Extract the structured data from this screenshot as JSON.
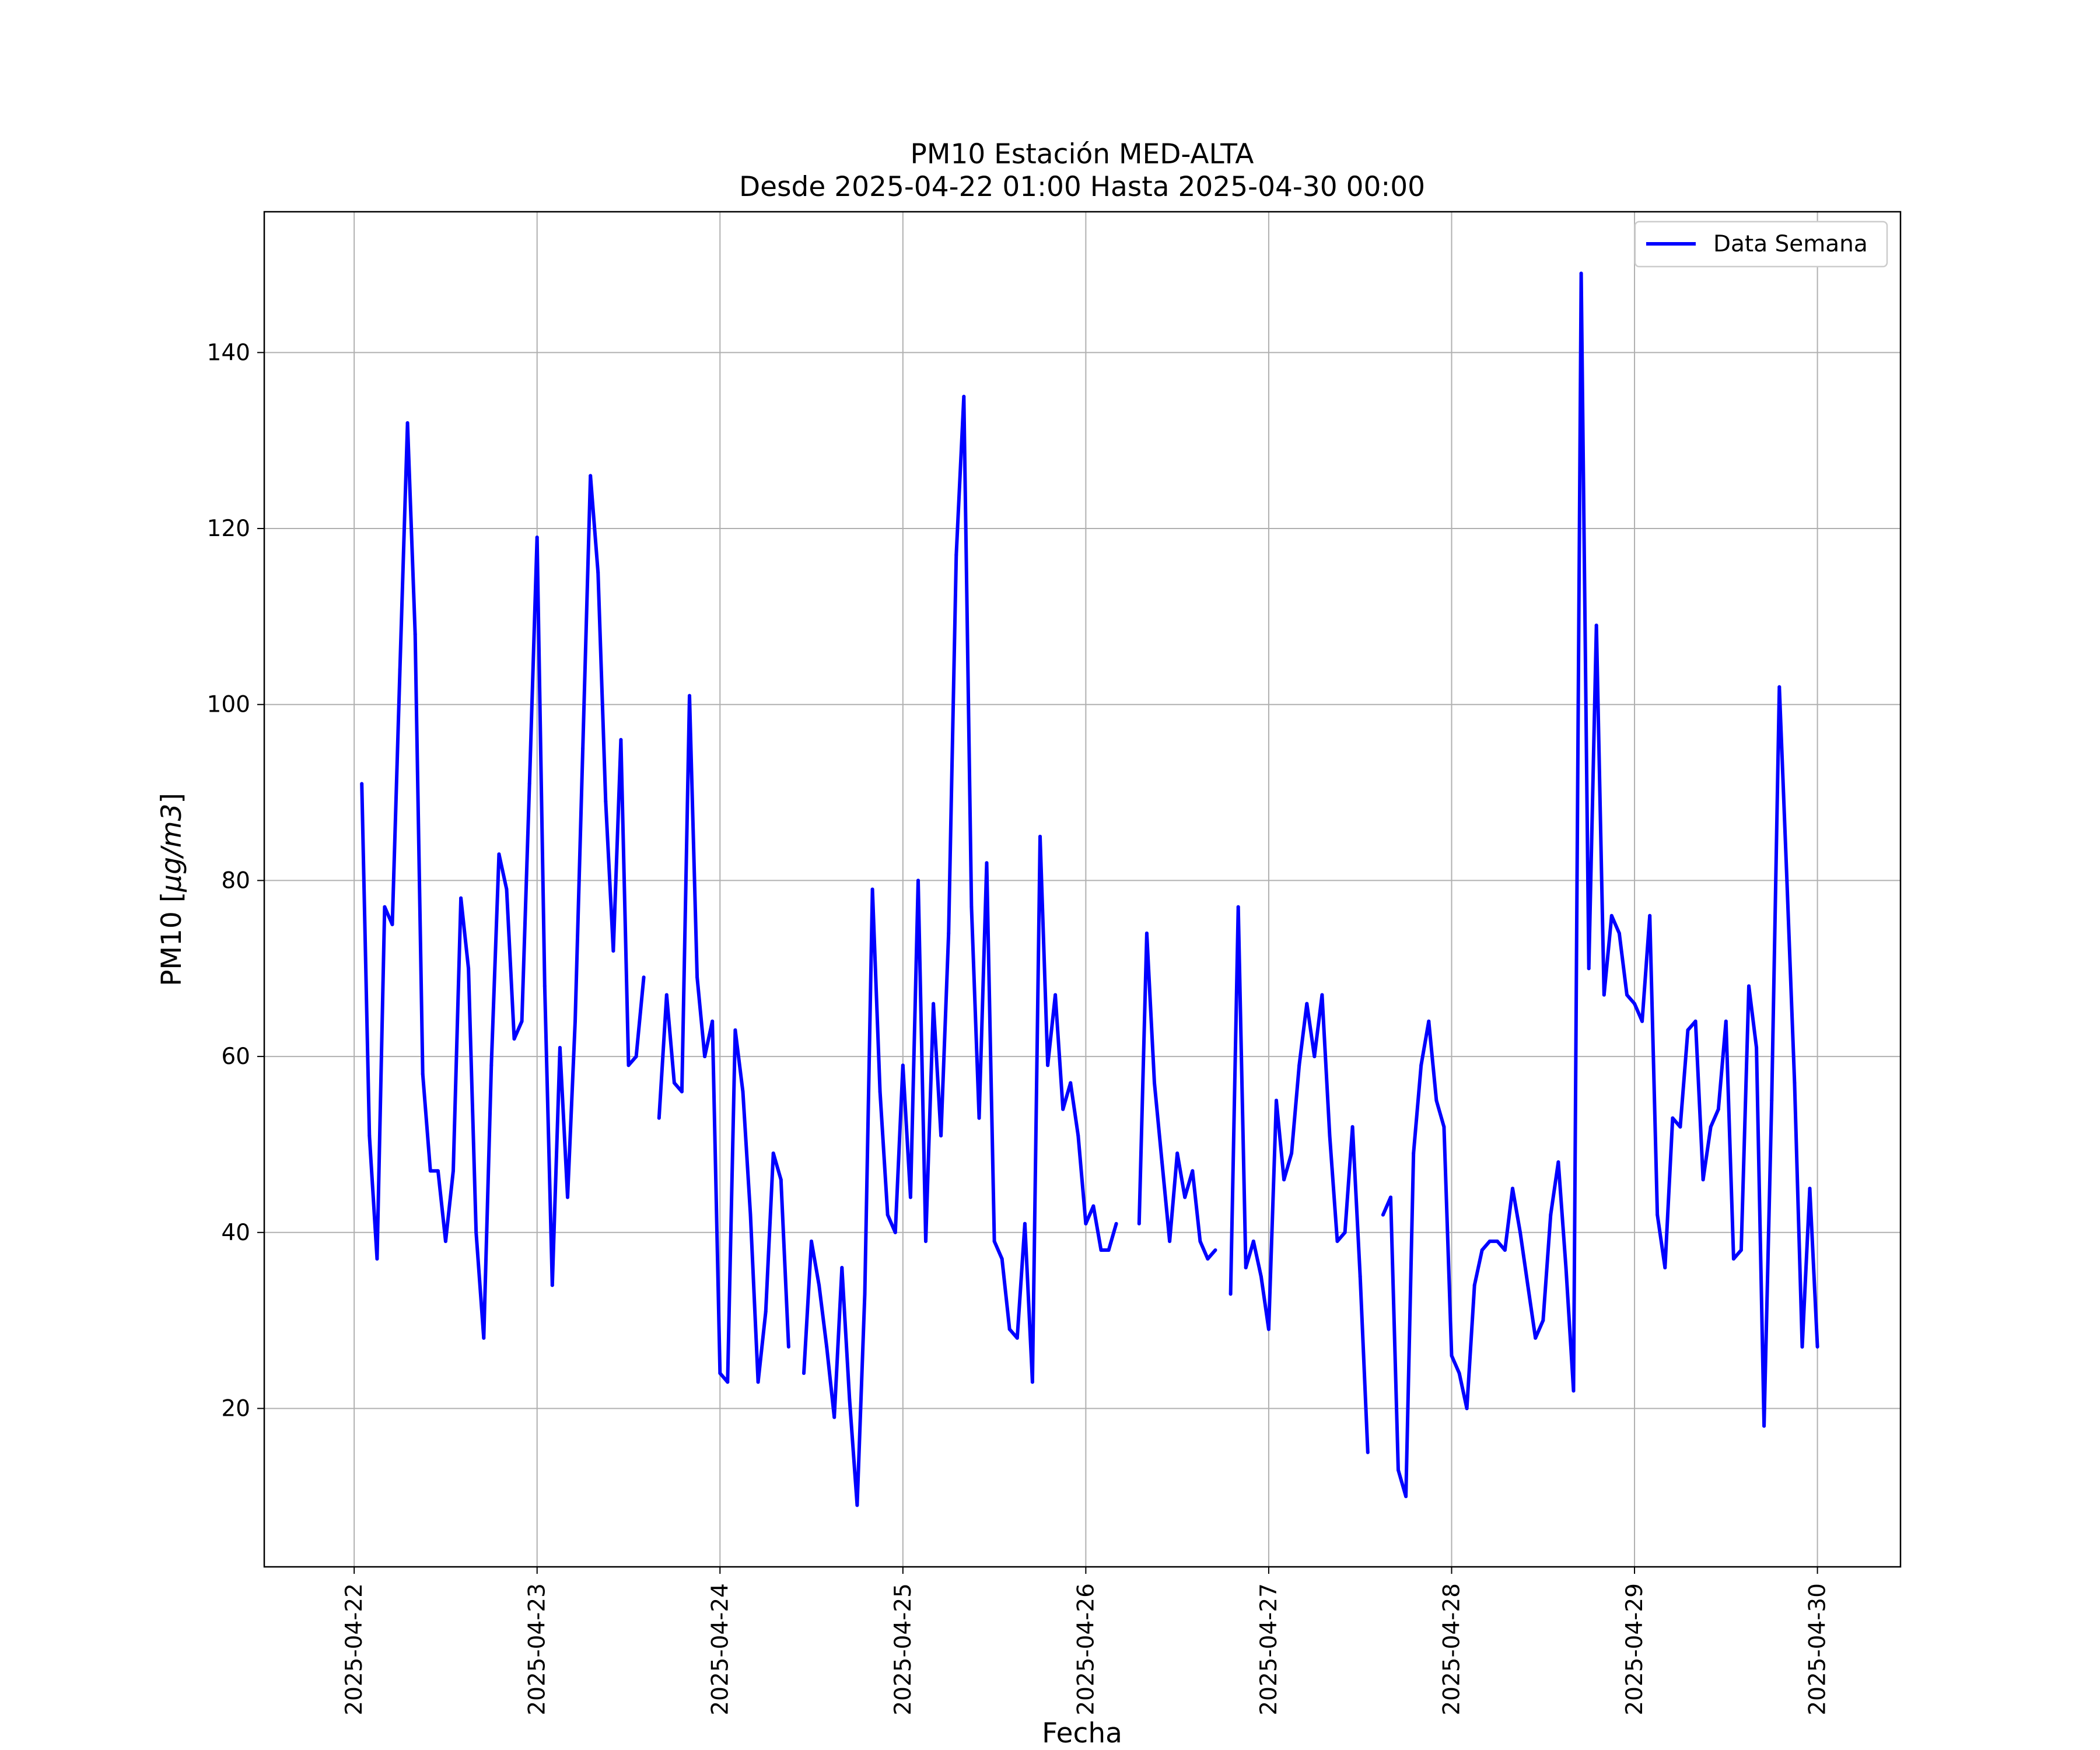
{
  "chart_data": {
    "type": "line",
    "title": "PM10 Estación MED-ALTA",
    "subtitle": "Desde 2025-04-22 01:00 Hasta 2025-04-30 00:00",
    "xlabel": "Fecha",
    "ylabel": "PM10 [μg/m3]",
    "ylabel_parts": {
      "prefix": "PM10 [",
      "unit": "μg/m3",
      "suffix": "]"
    },
    "x_ticks": [
      "2025-04-22",
      "2025-04-23",
      "2025-04-24",
      "2025-04-25",
      "2025-04-26",
      "2025-04-27",
      "2025-04-28",
      "2025-04-29",
      "2025-04-30"
    ],
    "y_ticks": [
      20,
      40,
      60,
      80,
      100,
      120,
      140
    ],
    "xlim": [
      "2025-04-21 12:12",
      "2025-04-30 10:54"
    ],
    "ylim": [
      2,
      156
    ],
    "grid": true,
    "legend_position": "top-right",
    "series": [
      {
        "name": "Data Semana",
        "color": "#0000ff",
        "segments": [
          [
            [
              "2025-04-22 01:00",
              91
            ],
            [
              "2025-04-22 02:00",
              51
            ],
            [
              "2025-04-22 03:00",
              37
            ],
            [
              "2025-04-22 04:00",
              77
            ],
            [
              "2025-04-22 05:00",
              75
            ],
            [
              "2025-04-22 06:00",
              104
            ],
            [
              "2025-04-22 07:00",
              132
            ],
            [
              "2025-04-22 08:00",
              108
            ],
            [
              "2025-04-22 09:00",
              58
            ],
            [
              "2025-04-22 10:00",
              47
            ],
            [
              "2025-04-22 11:00",
              47
            ],
            [
              "2025-04-22 12:00",
              39
            ],
            [
              "2025-04-22 13:00",
              47
            ],
            [
              "2025-04-22 14:00",
              78
            ],
            [
              "2025-04-22 15:00",
              70
            ],
            [
              "2025-04-22 16:00",
              40
            ],
            [
              "2025-04-22 17:00",
              28
            ],
            [
              "2025-04-22 18:00",
              59
            ],
            [
              "2025-04-22 19:00",
              83
            ],
            [
              "2025-04-22 20:00",
              79
            ],
            [
              "2025-04-22 21:00",
              62
            ],
            [
              "2025-04-22 22:00",
              64
            ],
            [
              "2025-04-22 23:00",
              91
            ],
            [
              "2025-04-23 00:00",
              119
            ],
            [
              "2025-04-23 01:00",
              68
            ],
            [
              "2025-04-23 02:00",
              34
            ],
            [
              "2025-04-23 03:00",
              61
            ],
            [
              "2025-04-23 04:00",
              44
            ],
            [
              "2025-04-23 05:00",
              64
            ],
            [
              "2025-04-23 06:00",
              95
            ],
            [
              "2025-04-23 07:00",
              126
            ],
            [
              "2025-04-23 08:00",
              115
            ],
            [
              "2025-04-23 09:00",
              89
            ],
            [
              "2025-04-23 10:00",
              72
            ],
            [
              "2025-04-23 11:00",
              96
            ],
            [
              "2025-04-23 12:00",
              59
            ],
            [
              "2025-04-23 13:00",
              60
            ],
            [
              "2025-04-23 14:00",
              69
            ]
          ],
          [
            [
              "2025-04-23 16:00",
              53
            ],
            [
              "2025-04-23 17:00",
              67
            ],
            [
              "2025-04-23 18:00",
              57
            ],
            [
              "2025-04-23 19:00",
              56
            ],
            [
              "2025-04-23 20:00",
              101
            ],
            [
              "2025-04-23 21:00",
              69
            ],
            [
              "2025-04-23 22:00",
              60
            ],
            [
              "2025-04-23 23:00",
              64
            ],
            [
              "2025-04-24 00:00",
              24
            ],
            [
              "2025-04-24 01:00",
              23
            ],
            [
              "2025-04-24 02:00",
              63
            ],
            [
              "2025-04-24 03:00",
              56
            ],
            [
              "2025-04-24 04:00",
              42
            ],
            [
              "2025-04-24 05:00",
              23
            ],
            [
              "2025-04-24 06:00",
              31
            ],
            [
              "2025-04-24 07:00",
              49
            ],
            [
              "2025-04-24 08:00",
              46
            ],
            [
              "2025-04-24 09:00",
              27
            ]
          ],
          [
            [
              "2025-04-24 11:00",
              24
            ],
            [
              "2025-04-24 12:00",
              39
            ],
            [
              "2025-04-24 13:00",
              34
            ],
            [
              "2025-04-24 14:00",
              27
            ],
            [
              "2025-04-24 15:00",
              19
            ],
            [
              "2025-04-24 16:00",
              36
            ],
            [
              "2025-04-24 17:00",
              21
            ],
            [
              "2025-04-24 18:00",
              9
            ],
            [
              "2025-04-24 19:00",
              33
            ],
            [
              "2025-04-24 20:00",
              79
            ],
            [
              "2025-04-24 21:00",
              56
            ],
            [
              "2025-04-24 22:00",
              42
            ],
            [
              "2025-04-24 23:00",
              40
            ],
            [
              "2025-04-25 00:00",
              59
            ],
            [
              "2025-04-25 01:00",
              44
            ],
            [
              "2025-04-25 02:00",
              80
            ],
            [
              "2025-04-25 03:00",
              39
            ],
            [
              "2025-04-25 04:00",
              66
            ],
            [
              "2025-04-25 05:00",
              51
            ],
            [
              "2025-04-25 06:00",
              74
            ],
            [
              "2025-04-25 07:00",
              117
            ],
            [
              "2025-04-25 08:00",
              135
            ],
            [
              "2025-04-25 09:00",
              77
            ],
            [
              "2025-04-25 10:00",
              53
            ],
            [
              "2025-04-25 11:00",
              82
            ],
            [
              "2025-04-25 12:00",
              39
            ],
            [
              "2025-04-25 13:00",
              37
            ],
            [
              "2025-04-25 14:00",
              29
            ],
            [
              "2025-04-25 15:00",
              28
            ],
            [
              "2025-04-25 16:00",
              41
            ],
            [
              "2025-04-25 17:00",
              23
            ],
            [
              "2025-04-25 18:00",
              85
            ],
            [
              "2025-04-25 19:00",
              59
            ],
            [
              "2025-04-25 20:00",
              67
            ],
            [
              "2025-04-25 21:00",
              54
            ],
            [
              "2025-04-25 22:00",
              57
            ],
            [
              "2025-04-25 23:00",
              51
            ],
            [
              "2025-04-26 00:00",
              41
            ],
            [
              "2025-04-26 01:00",
              43
            ],
            [
              "2025-04-26 02:00",
              38
            ],
            [
              "2025-04-26 03:00",
              38
            ],
            [
              "2025-04-26 04:00",
              41
            ]
          ],
          [
            [
              "2025-04-26 07:00",
              41
            ],
            [
              "2025-04-26 08:00",
              74
            ],
            [
              "2025-04-26 09:00",
              57
            ],
            [
              "2025-04-26 10:00",
              48
            ],
            [
              "2025-04-26 11:00",
              39
            ],
            [
              "2025-04-26 12:00",
              49
            ],
            [
              "2025-04-26 13:00",
              44
            ],
            [
              "2025-04-26 14:00",
              47
            ],
            [
              "2025-04-26 15:00",
              39
            ],
            [
              "2025-04-26 16:00",
              37
            ],
            [
              "2025-04-26 17:00",
              38
            ]
          ],
          [
            [
              "2025-04-26 19:00",
              33
            ],
            [
              "2025-04-26 20:00",
              77
            ],
            [
              "2025-04-26 21:00",
              36
            ],
            [
              "2025-04-26 22:00",
              39
            ],
            [
              "2025-04-26 23:00",
              35
            ],
            [
              "2025-04-27 00:00",
              29
            ],
            [
              "2025-04-27 01:00",
              55
            ],
            [
              "2025-04-27 02:00",
              46
            ],
            [
              "2025-04-27 03:00",
              49
            ],
            [
              "2025-04-27 04:00",
              59
            ],
            [
              "2025-04-27 05:00",
              66
            ],
            [
              "2025-04-27 06:00",
              60
            ],
            [
              "2025-04-27 07:00",
              67
            ],
            [
              "2025-04-27 08:00",
              51
            ],
            [
              "2025-04-27 09:00",
              39
            ],
            [
              "2025-04-27 10:00",
              40
            ],
            [
              "2025-04-27 11:00",
              52
            ],
            [
              "2025-04-27 12:00",
              35
            ],
            [
              "2025-04-27 13:00",
              15
            ]
          ],
          [
            [
              "2025-04-27 15:00",
              42
            ],
            [
              "2025-04-27 16:00",
              44
            ],
            [
              "2025-04-27 17:00",
              13
            ],
            [
              "2025-04-27 18:00",
              10
            ],
            [
              "2025-04-27 19:00",
              49
            ],
            [
              "2025-04-27 20:00",
              59
            ],
            [
              "2025-04-27 21:00",
              64
            ],
            [
              "2025-04-27 22:00",
              55
            ],
            [
              "2025-04-27 23:00",
              52
            ],
            [
              "2025-04-28 00:00",
              26
            ],
            [
              "2025-04-28 01:00",
              24
            ],
            [
              "2025-04-28 02:00",
              20
            ],
            [
              "2025-04-28 03:00",
              34
            ],
            [
              "2025-04-28 04:00",
              38
            ],
            [
              "2025-04-28 05:00",
              39
            ],
            [
              "2025-04-28 06:00",
              39
            ],
            [
              "2025-04-28 07:00",
              38
            ],
            [
              "2025-04-28 08:00",
              45
            ],
            [
              "2025-04-28 09:00",
              40
            ],
            [
              "2025-04-28 10:00",
              34
            ],
            [
              "2025-04-28 11:00",
              28
            ],
            [
              "2025-04-28 12:00",
              30
            ],
            [
              "2025-04-28 13:00",
              42
            ],
            [
              "2025-04-28 14:00",
              48
            ],
            [
              "2025-04-28 15:00",
              36
            ],
            [
              "2025-04-28 16:00",
              22
            ],
            [
              "2025-04-28 17:00",
              149
            ],
            [
              "2025-04-28 18:00",
              70
            ],
            [
              "2025-04-28 19:00",
              109
            ],
            [
              "2025-04-28 20:00",
              67
            ],
            [
              "2025-04-28 21:00",
              76
            ],
            [
              "2025-04-28 22:00",
              74
            ],
            [
              "2025-04-28 23:00",
              67
            ],
            [
              "2025-04-29 00:00",
              66
            ],
            [
              "2025-04-29 01:00",
              64
            ],
            [
              "2025-04-29 02:00",
              76
            ],
            [
              "2025-04-29 03:00",
              42
            ],
            [
              "2025-04-29 04:00",
              36
            ],
            [
              "2025-04-29 05:00",
              53
            ],
            [
              "2025-04-29 06:00",
              52
            ],
            [
              "2025-04-29 07:00",
              63
            ],
            [
              "2025-04-29 08:00",
              64
            ],
            [
              "2025-04-29 09:00",
              46
            ],
            [
              "2025-04-29 10:00",
              52
            ],
            [
              "2025-04-29 11:00",
              54
            ],
            [
              "2025-04-29 12:00",
              64
            ],
            [
              "2025-04-29 13:00",
              37
            ],
            [
              "2025-04-29 14:00",
              38
            ],
            [
              "2025-04-29 15:00",
              68
            ],
            [
              "2025-04-29 16:00",
              61
            ],
            [
              "2025-04-29 17:00",
              18
            ],
            [
              "2025-04-29 18:00",
              55
            ],
            [
              "2025-04-29 19:00",
              102
            ],
            [
              "2025-04-29 20:00",
              80
            ],
            [
              "2025-04-29 21:00",
              57
            ],
            [
              "2025-04-29 22:00",
              27
            ],
            [
              "2025-04-29 23:00",
              45
            ],
            [
              "2025-04-30 00:00",
              27
            ]
          ]
        ]
      }
    ]
  }
}
